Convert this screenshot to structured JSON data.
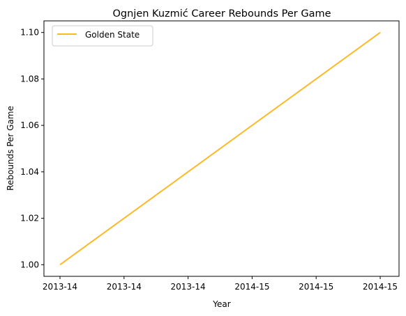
{
  "chart_data": {
    "type": "line",
    "title": "Ognjen Kuzmić Career Rebounds Per Game",
    "xlabel": "Year",
    "ylabel": "Rebounds Per Game",
    "x_tick_labels": [
      "2013-14",
      "2013-14",
      "2013-14",
      "2014-15",
      "2014-15",
      "2014-15"
    ],
    "x": [
      "2013-14",
      "2014-15"
    ],
    "series": [
      {
        "name": "Golden State",
        "values": [
          1.0,
          1.1
        ],
        "color": "#FDB927"
      }
    ],
    "ylim": [
      0.995,
      1.105
    ],
    "y_ticks": [
      1.0,
      1.02,
      1.04,
      1.06,
      1.08,
      1.1
    ],
    "y_tick_labels": [
      "1.00",
      "1.02",
      "1.04",
      "1.06",
      "1.08",
      "1.10"
    ],
    "grid": false,
    "legend_position": "top-left"
  }
}
